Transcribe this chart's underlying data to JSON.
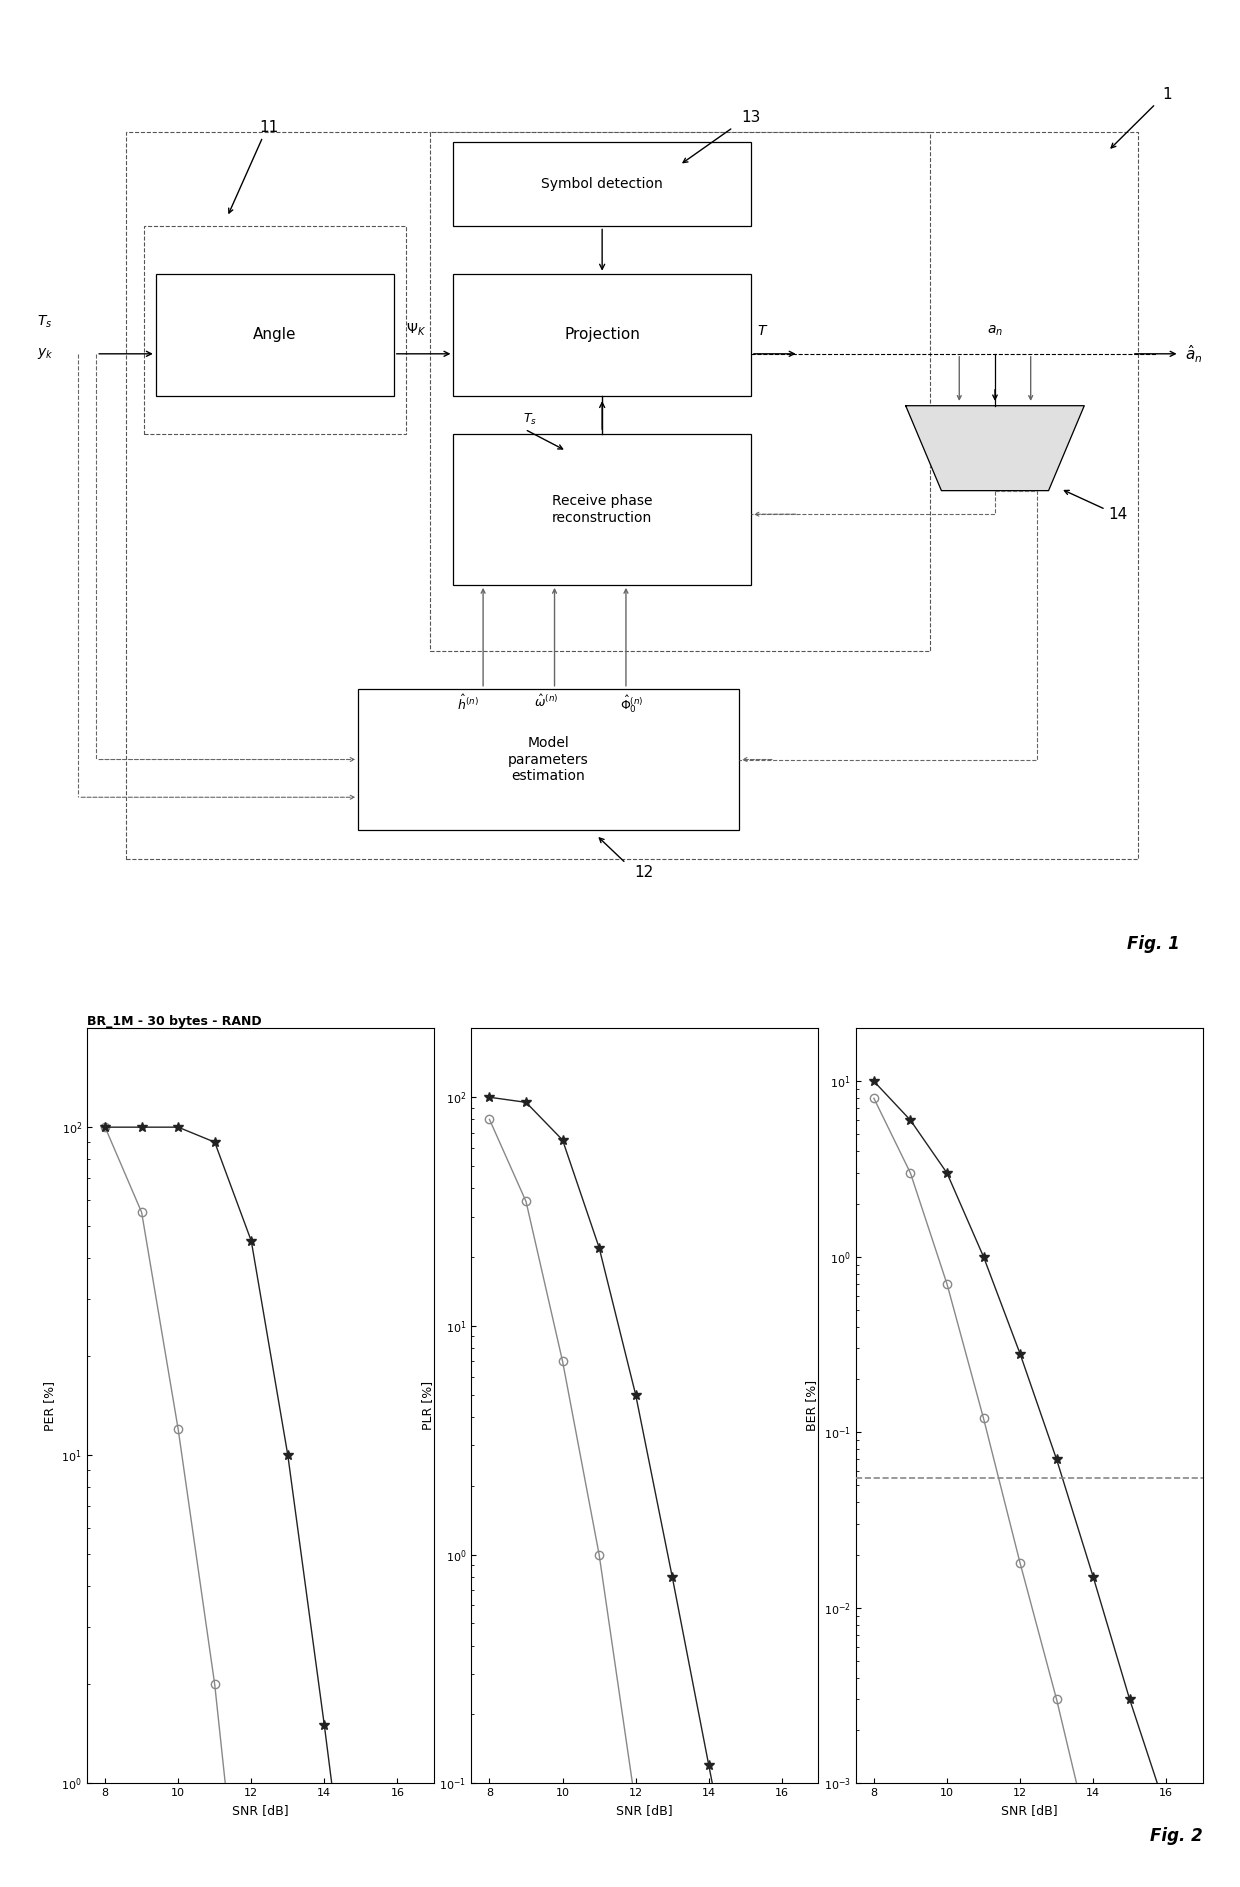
{
  "fig1_label": "Fig. 1",
  "fig2_label": "Fig. 2",
  "title_fig2": "BR_1M - 30 bytes - RAND",
  "snr_values": [
    8,
    9,
    10,
    11,
    12,
    13,
    14,
    15,
    16,
    17
  ],
  "per_circle": [
    100,
    55,
    12,
    2.0,
    0.18,
    0.012,
    0.0008,
    4e-05,
    3e-06,
    2e-07
  ],
  "per_star": [
    100,
    100,
    100,
    90,
    45,
    10,
    1.5,
    0.2,
    0.025,
    0.003
  ],
  "plr_circle": [
    80,
    35,
    7,
    1.0,
    0.08,
    0.006,
    0.0004,
    3e-05,
    2e-06,
    2e-07
  ],
  "plr_star": [
    100,
    95,
    65,
    22,
    5.0,
    0.8,
    0.12,
    0.018,
    0.002,
    0.0003
  ],
  "ber_circle": [
    8,
    3,
    0.7,
    0.12,
    0.018,
    0.003,
    0.0004,
    4e-05,
    4e-06,
    4e-07
  ],
  "ber_star": [
    10,
    6,
    3.0,
    1.0,
    0.28,
    0.07,
    0.015,
    0.003,
    0.0007,
    0.00015
  ],
  "ber_hline": 0.055,
  "color_circle": "#888888",
  "color_star": "#222222",
  "color_dashed": "#888888",
  "per_ylim_lo": 1.0,
  "per_ylim_hi": 200,
  "plr_ylim_lo": 0.1,
  "plr_ylim_hi": 200,
  "ber_ylim_lo": 0.001,
  "ber_ylim_hi": 20
}
